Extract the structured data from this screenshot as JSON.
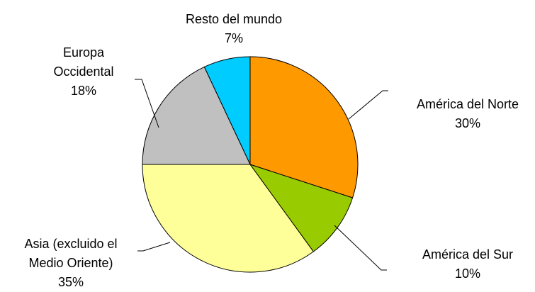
{
  "chart_data": {
    "type": "pie",
    "categories": [
      "América del Norte",
      "América del Sur",
      "Asia (excluido el Medio Oriente)",
      "Europa Occidental",
      "Resto del mundo"
    ],
    "values": [
      30,
      10,
      35,
      18,
      7
    ],
    "value_labels": [
      "30%",
      "10%",
      "35%",
      "18%",
      "7%"
    ],
    "colors": [
      "#FF9900",
      "#99CC00",
      "#FFFF99",
      "#C0C0C0",
      "#00CCFF"
    ]
  }
}
